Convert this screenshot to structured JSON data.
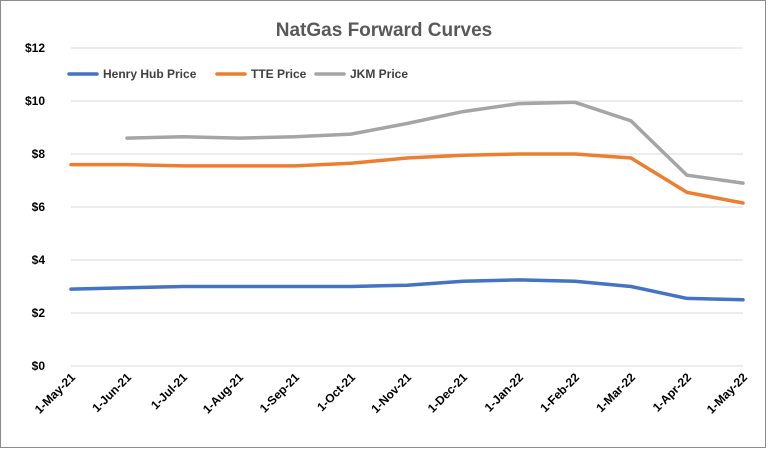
{
  "chart_data": {
    "type": "line",
    "title": "NatGas Forward Curves",
    "xlabel": "",
    "ylabel": "",
    "categories": [
      "1-May-21",
      "1-Jun-21",
      "1-Jul-21",
      "1-Aug-21",
      "1-Sep-21",
      "1-Oct-21",
      "1-Nov-21",
      "1-Dec-21",
      "1-Jan-22",
      "1-Feb-22",
      "1-Mar-22",
      "1-Apr-22",
      "1-May-22"
    ],
    "ylim": [
      0,
      12
    ],
    "yticks": [
      "$0",
      "$2",
      "$4",
      "$6",
      "$8",
      "$10",
      "$12"
    ],
    "ytick_values": [
      0,
      2,
      4,
      6,
      8,
      10,
      12
    ],
    "grid": true,
    "legend_position": "top-left",
    "series": [
      {
        "name": "Henry Hub Price",
        "color": "#4472c4",
        "values": [
          2.9,
          2.95,
          3.0,
          3.0,
          3.0,
          3.0,
          3.05,
          3.2,
          3.25,
          3.2,
          3.0,
          2.55,
          2.5
        ]
      },
      {
        "name": "TTE Price",
        "color": "#ed7d31",
        "values": [
          7.6,
          7.6,
          7.55,
          7.55,
          7.55,
          7.65,
          7.85,
          7.95,
          8.0,
          8.0,
          7.85,
          6.55,
          6.15
        ]
      },
      {
        "name": "JKM Price",
        "color": "#a5a5a5",
        "values": [
          null,
          8.6,
          8.65,
          8.6,
          8.65,
          8.75,
          9.15,
          9.6,
          9.9,
          9.95,
          9.25,
          7.2,
          6.9
        ]
      }
    ]
  }
}
